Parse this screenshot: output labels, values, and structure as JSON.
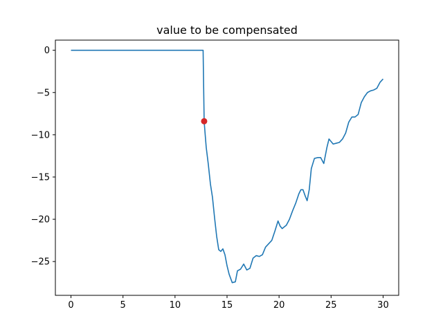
{
  "chart_data": {
    "type": "line",
    "title": "value to be compensated",
    "xlabel": "",
    "ylabel": "",
    "xlim": [
      -1.5,
      31.5
    ],
    "ylim": [
      -29,
      1.2
    ],
    "xticks": [
      0,
      5,
      10,
      15,
      20,
      25,
      30
    ],
    "yticks": [
      0,
      -5,
      -10,
      -15,
      -20,
      -25
    ],
    "grid": false,
    "legend": "none",
    "line_color": "#1f77b4",
    "marker_color": "#d62728",
    "series": [
      {
        "x": [
          0,
          12.7,
          12.8,
          12.9,
          13.0,
          13.2,
          13.4,
          13.6,
          13.8,
          14.0,
          14.2,
          14.4,
          14.6,
          14.8,
          15.0,
          15.2,
          15.5,
          15.8,
          16.0,
          16.3,
          16.6,
          16.9,
          17.2,
          17.5,
          17.8,
          18.1,
          18.4,
          18.7,
          19.0,
          19.3,
          19.6,
          19.9,
          20.1,
          20.3,
          20.5,
          20.7,
          21.0,
          21.3,
          21.6,
          21.9,
          22.1,
          22.3,
          22.5,
          22.7,
          22.9,
          23.1,
          23.4,
          23.7,
          24.0,
          24.3,
          24.6,
          24.8,
          25.0,
          25.2,
          25.5,
          25.8,
          26.1,
          26.4,
          26.7,
          27.0,
          27.3,
          27.6,
          27.9,
          28.2,
          28.5,
          28.8,
          29.1,
          29.4,
          29.7,
          30.0
        ],
        "y": [
          0,
          0,
          -8.4,
          -10.0,
          -11.5,
          -13.5,
          -15.8,
          -17.4,
          -19.8,
          -22.0,
          -23.6,
          -23.8,
          -23.5,
          -24.2,
          -25.5,
          -26.5,
          -27.5,
          -27.4,
          -26.1,
          -25.9,
          -25.3,
          -26.0,
          -25.8,
          -24.6,
          -24.3,
          -24.4,
          -24.2,
          -23.3,
          -22.9,
          -22.5,
          -21.4,
          -20.2,
          -20.8,
          -21.1,
          -20.9,
          -20.7,
          -20.0,
          -19.0,
          -18.1,
          -17.0,
          -16.5,
          -16.5,
          -17.2,
          -17.8,
          -16.5,
          -14.0,
          -12.8,
          -12.7,
          -12.7,
          -13.4,
          -11.5,
          -10.5,
          -10.8,
          -11.1,
          -11.0,
          -10.9,
          -10.5,
          -9.8,
          -8.5,
          -7.9,
          -7.9,
          -7.6,
          -6.2,
          -5.5,
          -5.0,
          -4.8,
          -4.7,
          -4.5,
          -3.8,
          -3.4
        ]
      }
    ],
    "highlight_point": {
      "x": 12.8,
      "y": -8.4
    }
  }
}
